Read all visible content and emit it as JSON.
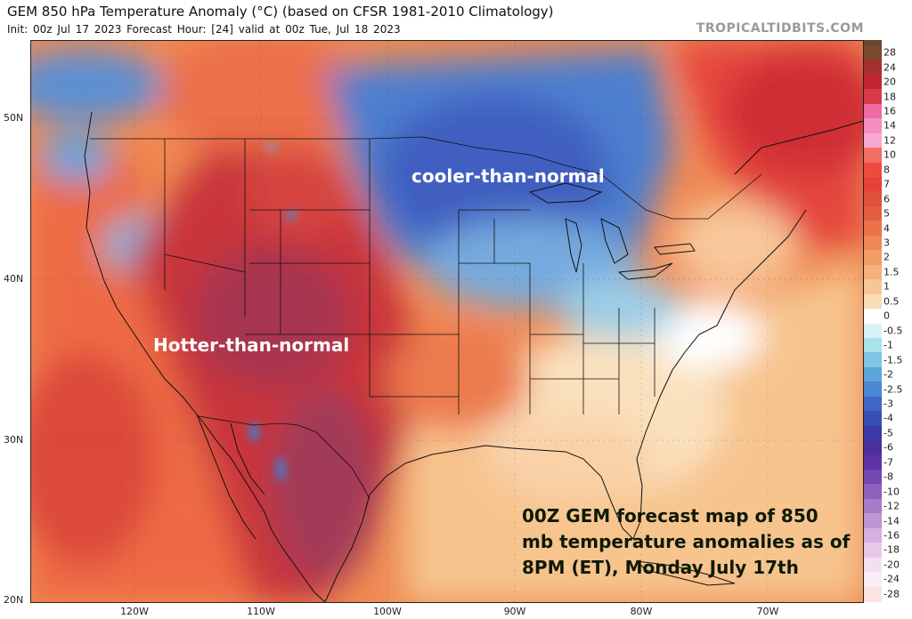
{
  "header": {
    "title": "GEM 850 hPa Temperature Anomaly (°C) (based on CFSR 1981-2010 Climatology)",
    "subtitle": "Init: 00z Jul 17 2023   Forecast Hour: [24]   valid at 00z Tue, Jul 18 2023",
    "brand": "TROPICALTIDBITS.COM"
  },
  "axes": {
    "latitudes": [
      "50N",
      "40N",
      "30N",
      "20N"
    ],
    "longitudes": [
      "120W",
      "110W",
      "100W",
      "90W",
      "80W",
      "70W"
    ]
  },
  "annotations": {
    "cool": "cooler-than-normal",
    "hot": "Hotter-than-normal",
    "note_lines": [
      "00Z GEM forecast map of 850",
      "mb temperature anomalies as of",
      "8PM (ET), Monday July 17th"
    ]
  },
  "colorbar": {
    "labels": [
      "28",
      "24",
      "20",
      "18",
      "16",
      "14",
      "12",
      "10",
      "8",
      "7",
      "6",
      "5",
      "4",
      "3",
      "2",
      "1.5",
      "1",
      "0.5",
      "0",
      "-0.5",
      "-1",
      "-1.5",
      "-2",
      "-2.5",
      "-3",
      "-4",
      "-5",
      "-6",
      "-7",
      "-8",
      "-10",
      "-12",
      "-14",
      "-16",
      "-18",
      "-20",
      "-24",
      "-28"
    ],
    "colors": [
      "#7a4a2c",
      "#a3322e",
      "#c2252f",
      "#d93a4a",
      "#ee6aa3",
      "#f58ec0",
      "#f8a7cf",
      "#f46d66",
      "#ee4a3d",
      "#e5433a",
      "#e0503a",
      "#e45d40",
      "#ea7248",
      "#ef8656",
      "#f29c68",
      "#f5b07e",
      "#f8c596",
      "#fbdcb8",
      "#ffffff",
      "#d8f3f5",
      "#a9e2ea",
      "#7ec6e3",
      "#5aa6dc",
      "#4b86d2",
      "#3f66c6",
      "#3a4fb6",
      "#3b3aa6",
      "#4b2f9a",
      "#5e33a3",
      "#7348b0",
      "#8d61bd",
      "#a77bc9",
      "#bf96d4",
      "#d4b0de",
      "#e7c8e8",
      "#f4dff2",
      "#fbecf7",
      "#fde4e4"
    ]
  }
}
